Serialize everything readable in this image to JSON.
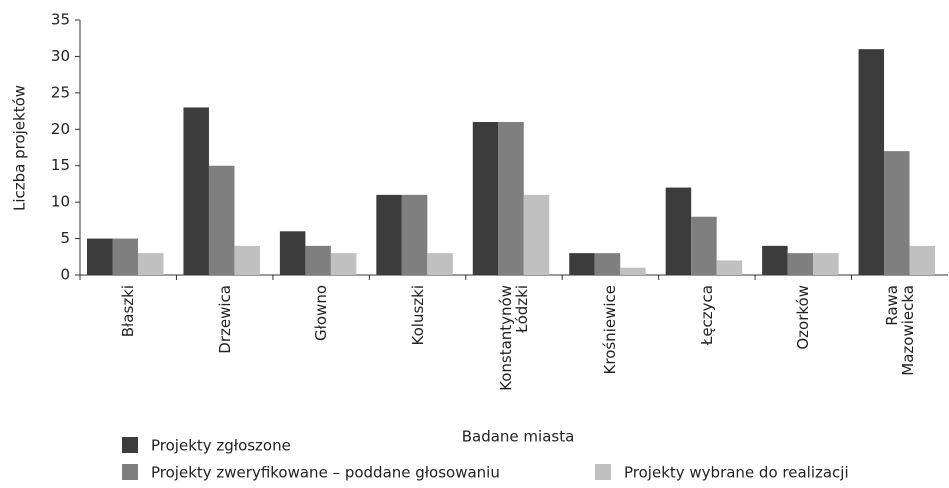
{
  "chart_data": {
    "type": "bar",
    "x_label": "Badane miasta",
    "y_label": "Liczba projektów",
    "categories": [
      "Błaszki",
      "Drzewica",
      "Głowno",
      "Koluszki",
      "Konstantynów\nŁódzki",
      "Krośniewice",
      "Łęczyca",
      "Ozorków",
      "Rawa\nMazowiecka"
    ],
    "series": [
      {
        "name": "Projekty zgłoszone",
        "color": "#3c3c3c",
        "values": [
          5,
          23,
          6,
          11,
          21,
          3,
          12,
          4,
          31
        ]
      },
      {
        "name": "Projekty zweryfikowane – poddane głosowaniu",
        "color": "#7f7f7f",
        "values": [
          5,
          15,
          4,
          11,
          21,
          3,
          8,
          3,
          17
        ]
      },
      {
        "name": "Projekty wybrane do realizacji",
        "color": "#c0c0c0",
        "values": [
          3,
          4,
          3,
          3,
          11,
          1,
          2,
          3,
          4
        ]
      }
    ],
    "ylim": [
      0,
      35
    ],
    "yticks": [
      0,
      5,
      10,
      15,
      20,
      25,
      30,
      35
    ],
    "grid": false
  }
}
